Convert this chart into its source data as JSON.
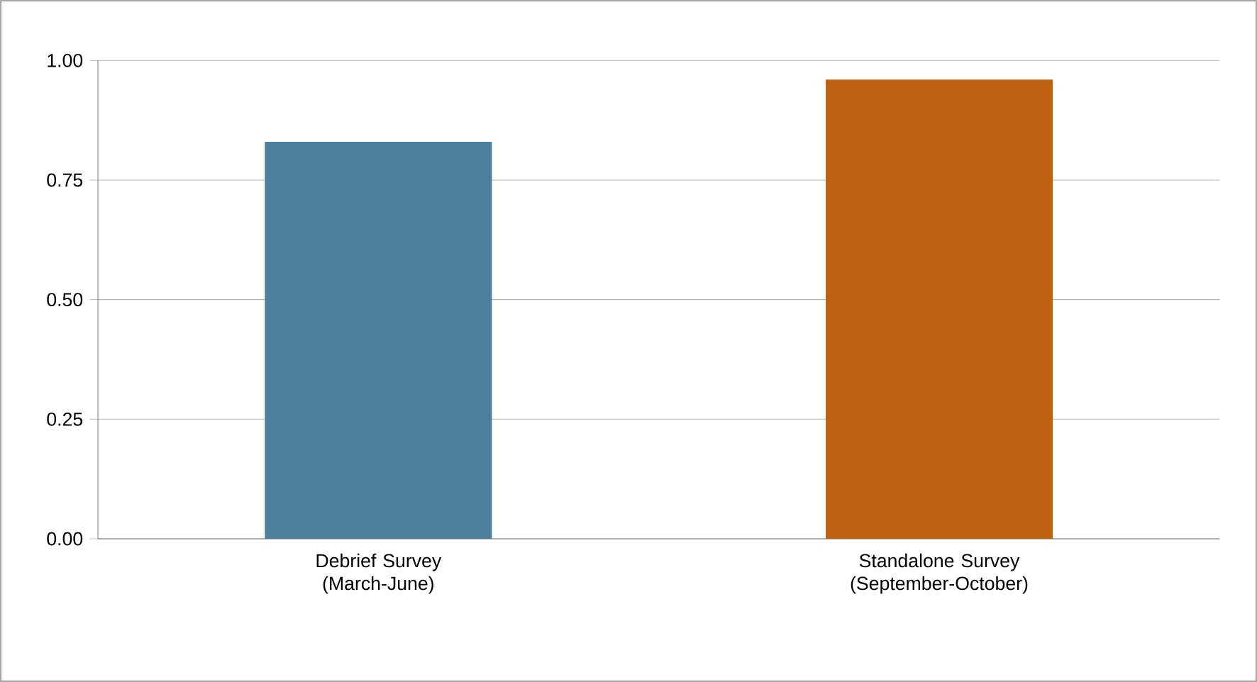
{
  "chart_data": {
    "type": "bar",
    "categories": [
      "Debrief Survey (March-June)",
      "Standalone Survey (September-October)"
    ],
    "values": [
      0.83,
      0.96
    ],
    "colors": [
      "#4a7fa0",
      "#bd6110"
    ],
    "ylim": [
      0,
      1
    ],
    "yticks": [
      {
        "value": 0,
        "label": "0.00"
      },
      {
        "value": 0.25,
        "label": "0.25"
      },
      {
        "value": 0.5,
        "label": "0.50"
      },
      {
        "value": 0.75,
        "label": "0.75"
      },
      {
        "value": 1,
        "label": "1.00"
      }
    ],
    "grid": "y"
  }
}
